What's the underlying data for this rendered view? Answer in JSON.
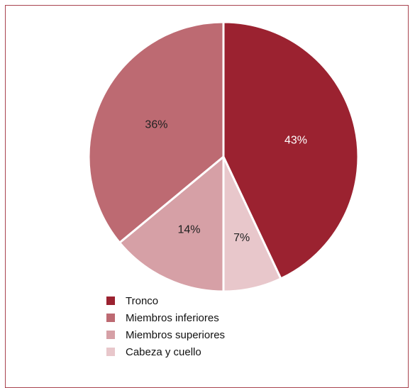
{
  "chart_data": {
    "type": "pie",
    "slices": [
      {
        "label": "Tronco",
        "value": 43,
        "display": "43%",
        "color": "#9b2230",
        "label_color": "#ffffff"
      },
      {
        "label": "Cabeza y cuello",
        "value": 7,
        "display": "7%",
        "color": "#e8c7cb",
        "label_color": "#222222"
      },
      {
        "label": "Miembros superiores",
        "value": 14,
        "display": "14%",
        "color": "#d6a0a6",
        "label_color": "#222222"
      },
      {
        "label": "Miembros inferiores",
        "value": 36,
        "display": "36%",
        "color": "#bd6a72",
        "label_color": "#222222"
      }
    ],
    "legend": {
      "position": "bottom-left",
      "items": [
        {
          "label": "Tronco",
          "color": "#9b2230"
        },
        {
          "label": "Miembros inferiores",
          "color": "#bd6a72"
        },
        {
          "label": "Miembros superiores",
          "color": "#d6a0a6"
        },
        {
          "label": "Cabeza y cuello",
          "color": "#e8c7cb"
        }
      ]
    },
    "start_angle": "top",
    "direction": "clockwise"
  }
}
